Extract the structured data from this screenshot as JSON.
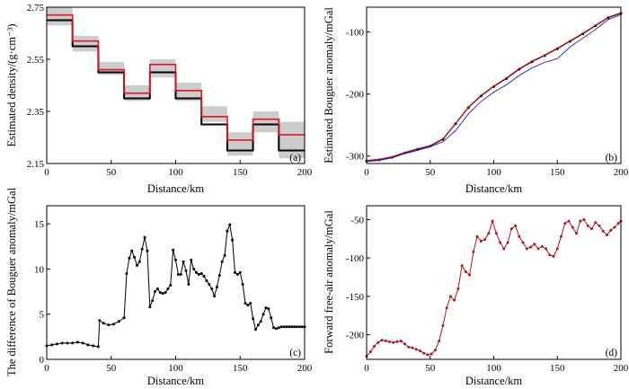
{
  "colors": {
    "black": "#000000",
    "red": "#e8141b",
    "blue": "#2233cc",
    "band": "#cccccc",
    "dark_red": "#b01818"
  },
  "chart_data": [
    {
      "id": "a",
      "type": "step",
      "panel_label": "(a)",
      "xlabel": "Distance/km",
      "ylabel": "Estimated density/(g·cm⁻³)",
      "xlim": [
        0,
        200
      ],
      "ylim": [
        2.15,
        2.75
      ],
      "xticks": [
        0,
        50,
        100,
        150,
        200
      ],
      "yticks": [
        2.15,
        2.35,
        2.55,
        2.75
      ],
      "x_tick_labels": [
        "0",
        "50",
        "100",
        "150",
        "200"
      ],
      "y_tick_labels": [
        "2.15",
        "2.35",
        "2.55",
        "2.75"
      ],
      "edges": [
        0,
        20,
        40,
        60,
        80,
        100,
        120,
        140,
        160,
        180,
        200
      ],
      "series": [
        {
          "name": "band_upper",
          "values": [
            2.75,
            2.64,
            2.54,
            2.45,
            2.55,
            2.46,
            2.37,
            2.27,
            2.35,
            2.31
          ]
        },
        {
          "name": "band_lower",
          "values": [
            2.68,
            2.58,
            2.49,
            2.39,
            2.48,
            2.39,
            2.31,
            2.18,
            2.27,
            2.17
          ]
        },
        {
          "name": "true",
          "color": "black",
          "values": [
            2.7,
            2.6,
            2.5,
            2.4,
            2.5,
            2.4,
            2.3,
            2.2,
            2.3,
            2.2
          ]
        },
        {
          "name": "estimated",
          "color": "red",
          "values": [
            2.72,
            2.62,
            2.51,
            2.42,
            2.53,
            2.43,
            2.33,
            2.24,
            2.32,
            2.26
          ]
        }
      ]
    },
    {
      "id": "b",
      "type": "line",
      "panel_label": "(b)",
      "xlabel": "Distance/km",
      "ylabel": "Estimated Bouguer anomaly/mGal",
      "xlim": [
        0,
        200
      ],
      "ylim": [
        -312,
        -60
      ],
      "xticks": [
        0,
        50,
        100,
        150,
        200
      ],
      "yticks": [
        -300,
        -200,
        -100
      ],
      "x_tick_labels": [
        "0",
        "50",
        "100",
        "150",
        "200"
      ],
      "y_tick_labels": [
        "-300",
        "-200",
        "-100"
      ],
      "series": [
        {
          "name": "observed",
          "color": "black",
          "markers": true,
          "x": [
            0,
            10,
            20,
            30,
            40,
            50,
            60,
            70,
            80,
            90,
            100,
            110,
            120,
            130,
            140,
            150,
            160,
            170,
            180,
            190,
            200
          ],
          "values": [
            -308,
            -306,
            -302,
            -295,
            -289,
            -284,
            -273,
            -248,
            -222,
            -203,
            -188,
            -175,
            -160,
            -148,
            -138,
            -127,
            -115,
            -103,
            -90,
            -77,
            -70
          ]
        },
        {
          "name": "estimated_red",
          "color": "red",
          "markers": false,
          "x": [
            0,
            10,
            20,
            30,
            40,
            50,
            60,
            70,
            80,
            90,
            100,
            110,
            120,
            130,
            140,
            150,
            160,
            170,
            180,
            190,
            200
          ],
          "values": [
            -307,
            -305,
            -301,
            -294,
            -288,
            -283,
            -272,
            -247,
            -221,
            -202,
            -187,
            -174,
            -159,
            -147,
            -137,
            -126,
            -114,
            -102,
            -89,
            -76,
            -69
          ]
        },
        {
          "name": "estimated_blue",
          "color": "blue",
          "markers": false,
          "x": [
            0,
            10,
            20,
            30,
            40,
            50,
            60,
            70,
            80,
            90,
            100,
            110,
            120,
            130,
            140,
            150,
            160,
            170,
            180,
            190,
            200
          ],
          "values": [
            -309,
            -307,
            -303,
            -296,
            -291,
            -285,
            -277,
            -259,
            -232,
            -212,
            -197,
            -185,
            -170,
            -158,
            -149,
            -143,
            -124,
            -110,
            -96,
            -80,
            -72
          ]
        }
      ]
    },
    {
      "id": "c",
      "type": "line",
      "panel_label": "(c)",
      "xlabel": "Distance/km",
      "ylabel": "The difference of Bouguer anomaly/mGal",
      "xlim": [
        0,
        200
      ],
      "ylim": [
        0,
        17
      ],
      "xticks": [
        0,
        50,
        100,
        150,
        200
      ],
      "yticks": [
        0,
        5,
        10,
        15
      ],
      "x_tick_labels": [
        "0",
        "50",
        "100",
        "150",
        "200"
      ],
      "y_tick_labels": [
        "0",
        "5",
        "10",
        "15"
      ],
      "series": [
        {
          "name": "difference",
          "color": "black",
          "markers": true,
          "x": [
            0,
            4,
            8,
            12,
            16,
            20,
            24,
            28,
            32,
            36,
            40,
            41,
            44,
            48,
            52,
            56,
            60,
            62,
            64,
            66,
            68,
            70,
            72,
            74,
            76,
            78,
            80,
            82,
            84,
            86,
            88,
            90,
            92,
            94,
            96,
            98,
            100,
            102,
            104,
            106,
            108,
            110,
            112,
            114,
            116,
            118,
            120,
            122,
            124,
            126,
            128,
            130,
            132,
            134,
            136,
            138,
            140,
            142,
            144,
            146,
            148,
            150,
            152,
            154,
            156,
            158,
            160,
            162,
            164,
            166,
            168,
            170,
            172,
            174,
            176,
            178,
            180,
            182,
            184,
            186,
            188,
            190,
            192,
            194,
            196,
            198,
            200
          ],
          "values": [
            1.5,
            1.6,
            1.7,
            1.8,
            1.8,
            1.8,
            1.9,
            1.8,
            1.6,
            1.5,
            1.4,
            4.3,
            4.0,
            3.8,
            3.9,
            4.2,
            4.6,
            9.5,
            11.2,
            12.0,
            11.3,
            10.4,
            10.8,
            12.2,
            13.5,
            12.0,
            5.8,
            6.5,
            7.5,
            7.8,
            7.4,
            7.3,
            7.4,
            7.8,
            8.2,
            12.1,
            11.0,
            9.4,
            9.4,
            10.8,
            9.8,
            8.3,
            11.0,
            10.0,
            9.6,
            9.4,
            9.5,
            9.2,
            8.7,
            8.3,
            7.8,
            7.0,
            8.0,
            9.3,
            10.8,
            11.5,
            14.2,
            14.9,
            13.2,
            9.6,
            9.4,
            9.6,
            8.3,
            6.2,
            6.0,
            6.2,
            4.5,
            3.3,
            3.8,
            4.2,
            5.0,
            5.7,
            5.6,
            4.6,
            3.5,
            3.4,
            3.5,
            3.6,
            3.6,
            3.6,
            3.6,
            3.6,
            3.6,
            3.6,
            3.6,
            3.6,
            3.6
          ]
        }
      ]
    },
    {
      "id": "d",
      "type": "line",
      "panel_label": "(d)",
      "xlabel": "Distance/km",
      "ylabel": "Forward free-air anomaly/mGal",
      "xlim": [
        0,
        200
      ],
      "ylim": [
        -232,
        -32
      ],
      "xticks": [
        0,
        50,
        100,
        150,
        200
      ],
      "yticks": [
        -200,
        -150,
        -100,
        -50
      ],
      "x_tick_labels": [
        "0",
        "50",
        "100",
        "150",
        "200"
      ],
      "y_tick_labels": [
        "-200",
        "-150",
        "-100",
        "-50"
      ],
      "series": [
        {
          "name": "free_air",
          "color": "dark_red",
          "markers": true,
          "x": [
            0,
            3,
            6,
            9,
            12,
            15,
            18,
            21,
            24,
            27,
            30,
            33,
            36,
            39,
            42,
            45,
            48,
            51,
            54,
            57,
            60,
            63,
            66,
            69,
            72,
            75,
            78,
            81,
            84,
            87,
            90,
            93,
            96,
            99,
            102,
            105,
            108,
            111,
            114,
            117,
            120,
            123,
            126,
            129,
            132,
            135,
            138,
            141,
            144,
            147,
            150,
            153,
            156,
            159,
            162,
            165,
            168,
            171,
            174,
            177,
            180,
            183,
            186,
            189,
            192,
            195,
            198,
            200
          ],
          "values": [
            -228,
            -222,
            -215,
            -210,
            -207,
            -208,
            -209,
            -210,
            -209,
            -208,
            -212,
            -216,
            -217,
            -219,
            -221,
            -224,
            -226,
            -225,
            -220,
            -208,
            -188,
            -165,
            -150,
            -155,
            -140,
            -110,
            -118,
            -122,
            -92,
            -72,
            -78,
            -76,
            -68,
            -52,
            -68,
            -80,
            -88,
            -80,
            -62,
            -58,
            -72,
            -80,
            -88,
            -86,
            -82,
            -88,
            -85,
            -88,
            -96,
            -98,
            -88,
            -72,
            -55,
            -52,
            -60,
            -68,
            -52,
            -50,
            -58,
            -62,
            -54,
            -58,
            -65,
            -70,
            -64,
            -60,
            -55,
            -52
          ]
        }
      ]
    }
  ]
}
